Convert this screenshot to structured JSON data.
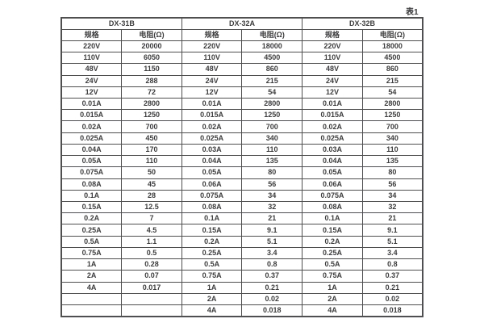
{
  "page": {
    "table_caption": "表1"
  },
  "colors": {
    "background": "#ffffff",
    "border": "#4f4f51",
    "text": "#3c3c3e"
  },
  "table": {
    "groups": [
      {
        "name": "DX-31B",
        "spec_header": "规格",
        "resistance_header": "电阻(Ω)"
      },
      {
        "name": "DX-32A",
        "spec_header": "规格",
        "resistance_header": "电阻(Ω)"
      },
      {
        "name": "DX-32B",
        "spec_header": "规格",
        "resistance_header": "电阻(Ω)"
      }
    ],
    "rows": [
      [
        "220V",
        "20000",
        "220V",
        "18000",
        "220V",
        "18000"
      ],
      [
        "110V",
        "6050",
        "110V",
        "4500",
        "110V",
        "4500"
      ],
      [
        "48V",
        "1150",
        "48V",
        "860",
        "48V",
        "860"
      ],
      [
        "24V",
        "288",
        "24V",
        "215",
        "24V",
        "215"
      ],
      [
        "12V",
        "72",
        "12V",
        "54",
        "12V",
        "54"
      ],
      [
        "0.01A",
        "2800",
        "0.01A",
        "2800",
        "0.01A",
        "2800"
      ],
      [
        "0.015A",
        "1250",
        "0.015A",
        "1250",
        "0.015A",
        "1250"
      ],
      [
        "0.02A",
        "700",
        "0.02A",
        "700",
        "0.02A",
        "700"
      ],
      [
        "0.025A",
        "450",
        "0.025A",
        "340",
        "0.025A",
        "340"
      ],
      [
        "0.04A",
        "170",
        "0.03A",
        "110",
        "0.03A",
        "110"
      ],
      [
        "0.05A",
        "110",
        "0.04A",
        "135",
        "0.04A",
        "135"
      ],
      [
        "0.075A",
        "50",
        "0.05A",
        "80",
        "0.05A",
        "80"
      ],
      [
        "0.08A",
        "45",
        "0.06A",
        "56",
        "0.06A",
        "56"
      ],
      [
        "0.1A",
        "28",
        "0.075A",
        "34",
        "0.075A",
        "34"
      ],
      [
        "0.15A",
        "12.5",
        "0.08A",
        "32",
        "0.08A",
        "32"
      ],
      [
        "0.2A",
        "7",
        "0.1A",
        "21",
        "0.1A",
        "21"
      ],
      [
        "0.25A",
        "4.5",
        "0.15A",
        "9.1",
        "0.15A",
        "9.1"
      ],
      [
        "0.5A",
        "1.1",
        "0.2A",
        "5.1",
        "0.2A",
        "5.1"
      ],
      [
        "0.75A",
        "0.5",
        "0.25A",
        "3.4",
        "0.25A",
        "3.4"
      ],
      [
        "1A",
        "0.28",
        "0.5A",
        "0.8",
        "0.5A",
        "0.8"
      ],
      [
        "2A",
        "0.07",
        "0.75A",
        "0.37",
        "0.75A",
        "0.37"
      ],
      [
        "4A",
        "0.017",
        "1A",
        "0.21",
        "1A",
        "0.21"
      ],
      [
        "",
        "",
        "2A",
        "0.02",
        "2A",
        "0.02"
      ],
      [
        "",
        "",
        "4A",
        "0.018",
        "4A",
        "0.018"
      ]
    ]
  }
}
